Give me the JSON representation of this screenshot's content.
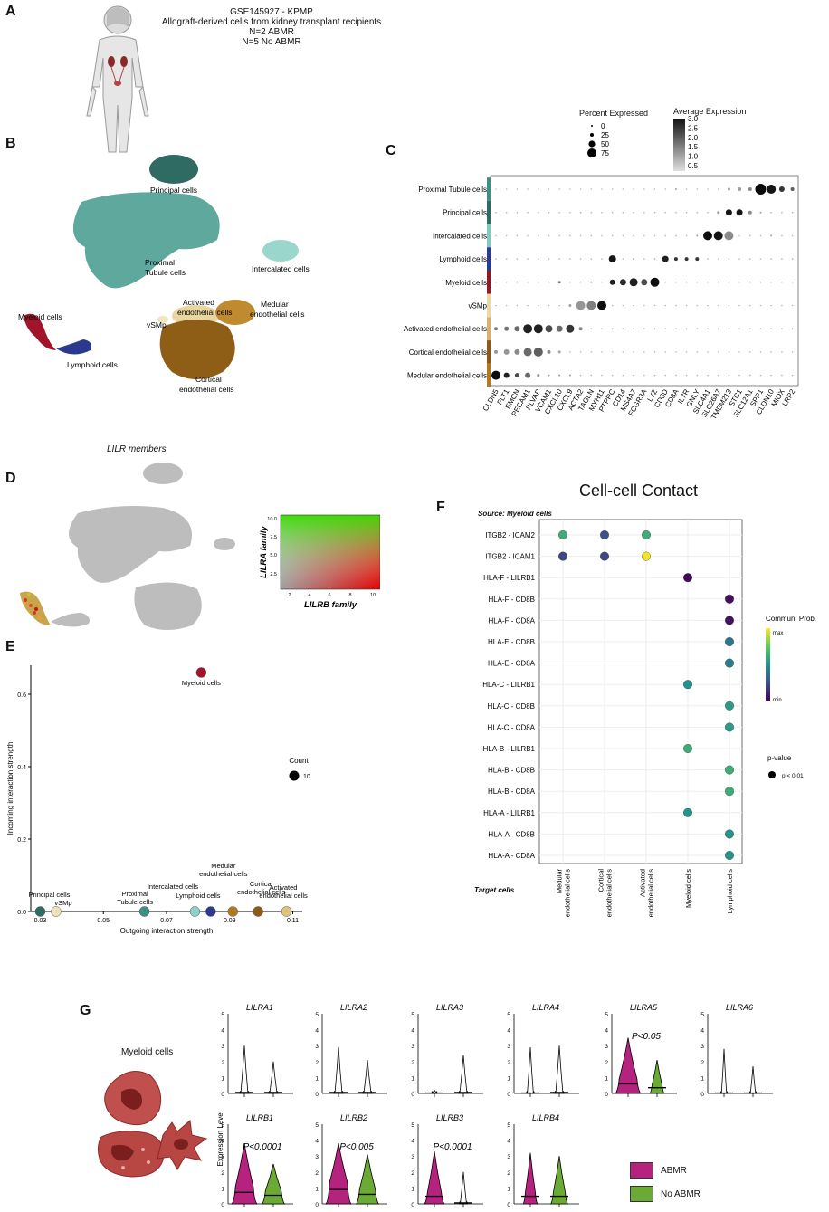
{
  "panels": {
    "A": "A",
    "B": "B",
    "C": "C",
    "D": "D",
    "E": "E",
    "F": "F",
    "G": "G"
  },
  "panelA": {
    "lines": [
      "GSE145927 - KPMP",
      "Allograft-derived cells from kidney transplant recipients",
      "N=2 ABMR",
      "N=5 No ABMR"
    ]
  },
  "panelB": {
    "clusters": [
      "Principal cells",
      "Proximal\nTubule cells",
      "Intercalated cells",
      "Activated\nendothelial cells",
      "Medular\nendothelial cells",
      "vSMp",
      "Myeloid cells",
      "Lymphoid cells",
      "Cortical\nendothelial cells"
    ],
    "labels": {
      "principal": "Principal cells",
      "proximal1": "Proximal",
      "proximal2": "Tubule cells",
      "intercalated": "Intercalated cells",
      "activated1": "Activated",
      "activated2": "endothelial cells",
      "medular1": "Medular",
      "medular2": "endothelial cells",
      "vsmp": "vSMp",
      "myeloid": "Myeloid cells",
      "lymphoid": "Lymphoid cells",
      "cortical1": "Cortical",
      "cortical2": "endothelial cells"
    }
  },
  "panelC": {
    "legend_pct_title": "Percent Expressed",
    "legend_pct_values": [
      "0",
      "25",
      "50",
      "75"
    ],
    "legend_avg_title": "Average Expression",
    "legend_avg_values": [
      "3.0",
      "2.5",
      "2.0",
      "1.5",
      "1.0",
      "0.5"
    ],
    "rows": [
      "Proximal Tubule cells",
      "Principal cells",
      "Intercalated cells",
      "Lymphoid cells",
      "Myeloid cells",
      "vSMp",
      "Activated endothelial cells",
      "Cortical endothelial cells",
      "Medular endothelial cells"
    ],
    "row_colors": [
      "#3d8f84",
      "#2f6b62",
      "#7fc9bf",
      "#2b3a8f",
      "#8c1a2b",
      "#e8d9a6",
      "#d9b26a",
      "#8a5a17",
      "#b07a1e"
    ],
    "genes": [
      "CLDN5",
      "FLT1",
      "EMCN",
      "PECAM1",
      "PLVAP",
      "VCAM1",
      "CXCL10",
      "CXCL9",
      "ACTA2",
      "TAGLN",
      "MYH11",
      "PTPRC",
      "CD14",
      "MS4A7",
      "FCGR3A",
      "LYZ",
      "CD3D",
      "CD8A",
      "IL7R",
      "GNLY",
      "SLC4A1",
      "SLC26A7",
      "TMEM213",
      "STC1",
      "SLC12A1",
      "SPP1",
      "CLDN10",
      "MIOX",
      "LRP2"
    ]
  },
  "panelD": {
    "title": "LILR members",
    "ylabel": "LILRA family",
    "xlabel": "LILRB family",
    "yticks": [
      "10.0",
      "7.5",
      "5.0",
      "2.5"
    ],
    "xticks": [
      "2",
      "4",
      "6",
      "8",
      "10"
    ]
  },
  "panelE": {
    "ylabel": "Incoming interaction strength",
    "xlabel": "Outgoing interaction strength",
    "yticks": [
      "0.0",
      "0.2",
      "0.4",
      "0.6"
    ],
    "xticks": [
      "0.03",
      "0.05",
      "0.07",
      "0.09",
      "0.11"
    ],
    "count_title": "Count",
    "count_value": "10",
    "labels": {
      "principal": "Principal cells",
      "vsmp": "vSMp",
      "proximal1": "Proximal",
      "proximal2": "Tubule cells",
      "intercalated": "Intercalated cells",
      "lymphoid": "Lymphoid cells",
      "medular1": "Medular",
      "medular2": "endothelial cells",
      "cortical1": "Cortical",
      "cortical2": "endothelial cells",
      "activated1": "Activated",
      "activated2": "endothelial cells",
      "myeloid": "Myeloid cells"
    }
  },
  "chart_data": [
    {
      "type": "scatter",
      "title": "",
      "xlabel": "Outgoing interaction strength",
      "ylabel": "Incoming interaction strength",
      "xlim": [
        0.03,
        0.11
      ],
      "ylim": [
        0,
        0.65
      ],
      "points": [
        {
          "name": "Principal cells",
          "x": 0.03,
          "y": 0.0,
          "color": "#2f6b62"
        },
        {
          "name": "vSMp",
          "x": 0.035,
          "y": 0.0,
          "color": "#efe2b8"
        },
        {
          "name": "Proximal Tubule cells",
          "x": 0.063,
          "y": 0.0,
          "color": "#3d8f84"
        },
        {
          "name": "Intercalated cells",
          "x": 0.079,
          "y": 0.0,
          "color": "#8fd0c6"
        },
        {
          "name": "Lymphoid cells",
          "x": 0.084,
          "y": 0.0,
          "color": "#2b3a8f"
        },
        {
          "name": "Medular endothelial cells",
          "x": 0.091,
          "y": 0.0,
          "color": "#b07a1e"
        },
        {
          "name": "Cortical endothelial cells",
          "x": 0.099,
          "y": 0.0,
          "color": "#8a5a17"
        },
        {
          "name": "Activated endothelial cells",
          "x": 0.108,
          "y": 0.0,
          "color": "#e0c27f"
        },
        {
          "name": "Myeloid cells",
          "x": 0.081,
          "y": 0.66,
          "color": "#a0152a"
        }
      ]
    },
    {
      "type": "scatter",
      "title": "Cell-cell Contact",
      "subtitle": "Source: Myeloid cells",
      "xlabel": "Target cells",
      "categories_x": [
        "Medular\nendothelial cells",
        "Cortical\nendothelial cells",
        "Activated\nendothelial cells",
        "Myeloid cells",
        "Lymphoid cells"
      ],
      "categories_y": [
        "ITGB2 - ICAM2",
        "ITGB2 - ICAM1",
        "HLA-F - LILRB1",
        "HLA-F - CD8B",
        "HLA-F - CD8A",
        "HLA-E - CD8B",
        "HLA-E - CD8A",
        "HLA-C - LILRB1",
        "HLA-C - CD8B",
        "HLA-C - CD8A",
        "HLA-B - LILRB1",
        "HLA-B - CD8B",
        "HLA-B - CD8A",
        "HLA-A - LILRB1",
        "HLA-A - CD8B",
        "HLA-A - CD8A"
      ],
      "points": [
        {
          "x": 0,
          "y": 0,
          "prob": 0.62
        },
        {
          "x": 1,
          "y": 0,
          "prob": 0.25
        },
        {
          "x": 2,
          "y": 0,
          "prob": 0.62
        },
        {
          "x": 0,
          "y": 1,
          "prob": 0.22
        },
        {
          "x": 1,
          "y": 1,
          "prob": 0.22
        },
        {
          "x": 2,
          "y": 1,
          "prob": 0.98
        },
        {
          "x": 3,
          "y": 2,
          "prob": 0.02
        },
        {
          "x": 4,
          "y": 3,
          "prob": 0.04
        },
        {
          "x": 4,
          "y": 4,
          "prob": 0.05
        },
        {
          "x": 4,
          "y": 5,
          "prob": 0.4
        },
        {
          "x": 4,
          "y": 6,
          "prob": 0.42
        },
        {
          "x": 3,
          "y": 7,
          "prob": 0.5
        },
        {
          "x": 4,
          "y": 8,
          "prob": 0.55
        },
        {
          "x": 4,
          "y": 9,
          "prob": 0.55
        },
        {
          "x": 3,
          "y": 10,
          "prob": 0.62
        },
        {
          "x": 4,
          "y": 11,
          "prob": 0.62
        },
        {
          "x": 4,
          "y": 12,
          "prob": 0.62
        },
        {
          "x": 3,
          "y": 13,
          "prob": 0.52
        },
        {
          "x": 4,
          "y": 14,
          "prob": 0.52
        },
        {
          "x": 4,
          "y": 15,
          "prob": 0.52
        }
      ]
    }
  ],
  "panelF": {
    "title": "Cell-cell Contact",
    "source": "Source: Myeloid cells",
    "target": "Target cells",
    "legend_title": "Commun. Prob.",
    "legend_max": "max",
    "legend_min": "min",
    "pvalue_title": "p-value",
    "pvalue_label": "p < 0.01"
  },
  "panelG": {
    "cell_label": "Myeloid cells",
    "ylabel": "Expression Level",
    "yticks": [
      "0",
      "1",
      "2",
      "3",
      "4",
      "5"
    ],
    "genes_top": [
      "LILRA1",
      "LILRA2",
      "LILRA3",
      "LILRA4",
      "LILRA5",
      "LILRA6"
    ],
    "genes_bottom": [
      "LILRB1",
      "LILRB2",
      "LILRB3",
      "LILRB4"
    ],
    "pvals": {
      "LILRA5": "P<0.05",
      "LILRB1": "P<0.0001",
      "LILRB2": "P<0.005",
      "LILRB3": "P<0.0001"
    },
    "legend": [
      {
        "label": "ABMR",
        "color": "#b5237f"
      },
      {
        "label": "No ABMR",
        "color": "#6aaa35"
      }
    ]
  }
}
